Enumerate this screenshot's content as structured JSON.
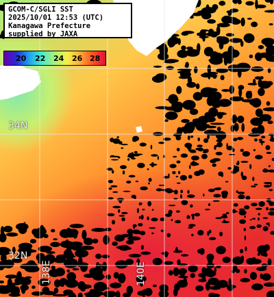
{
  "map": {
    "info_lines": [
      "GCOM-C/SGLI SST",
      "2025/10/01 12:53 (UTC)",
      "Kanagawa Prefecture",
      "supplied by JAXA"
    ],
    "legend": {
      "ticks": [
        "20",
        "22",
        "24",
        "26",
        "28"
      ],
      "colors": [
        "#6a00a8",
        "#2a2ad8",
        "#1e9cf0",
        "#3fe8d2",
        "#a8f27a",
        "#f3ef4a",
        "#ffb23a",
        "#ff5a22",
        "#e0103a"
      ]
    },
    "grid_labels": {
      "lat_34": "34N",
      "lat_32": "32N",
      "lon_138": "138E",
      "lon_140": "140E"
    },
    "land_color": "#ffffff",
    "cloud_color": "#000000",
    "grid_color": "#e8e8e8"
  }
}
